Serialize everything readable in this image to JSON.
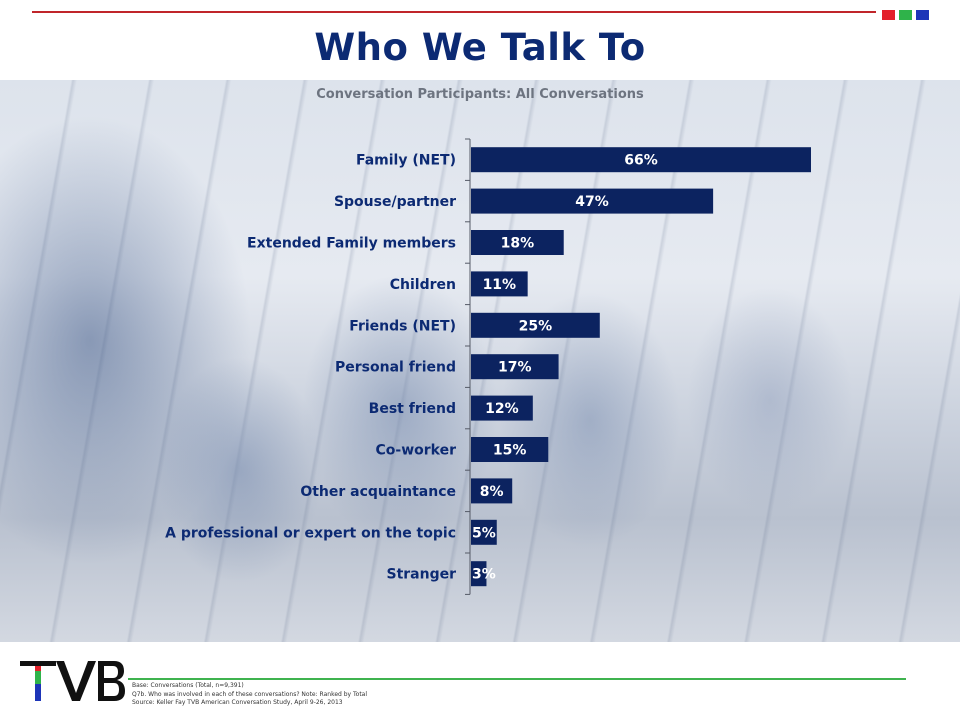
{
  "slide": {
    "title": "Who We Talk To",
    "accent_colors": {
      "rule": "#c0252a",
      "squares": [
        "#e3202a",
        "#2fb34a",
        "#1d35b8"
      ],
      "footer_rule": "#3fb34f"
    }
  },
  "chart_data": {
    "type": "bar",
    "orientation": "horizontal",
    "title": "Conversation Participants: All Conversations",
    "categories": [
      "Family (NET)",
      "Spouse/partner",
      "Extended Family members",
      "Children",
      "Friends (NET)",
      "Personal friend",
      "Best friend",
      "Co-worker",
      "Other acquaintance",
      "A professional or expert on the topic",
      "Stranger"
    ],
    "values": [
      66,
      47,
      18,
      11,
      25,
      17,
      12,
      15,
      8,
      5,
      3
    ],
    "value_labels": [
      "66%",
      "47%",
      "18%",
      "11%",
      "25%",
      "17%",
      "12%",
      "15%",
      "8%",
      "5%",
      "3%"
    ],
    "xlim": [
      0,
      100
    ],
    "bar_color": "#0c2360",
    "grid": false,
    "legend": "none"
  },
  "footer": {
    "logo_text": "TVB",
    "notes": [
      "Base: Conversations (Total, n=9,391)",
      "Q7b. Who was involved in each of these conversations? Note: Ranked by Total",
      "Source: Keller Fay TVB American Conversation Study, April 9-26, 2013"
    ]
  }
}
